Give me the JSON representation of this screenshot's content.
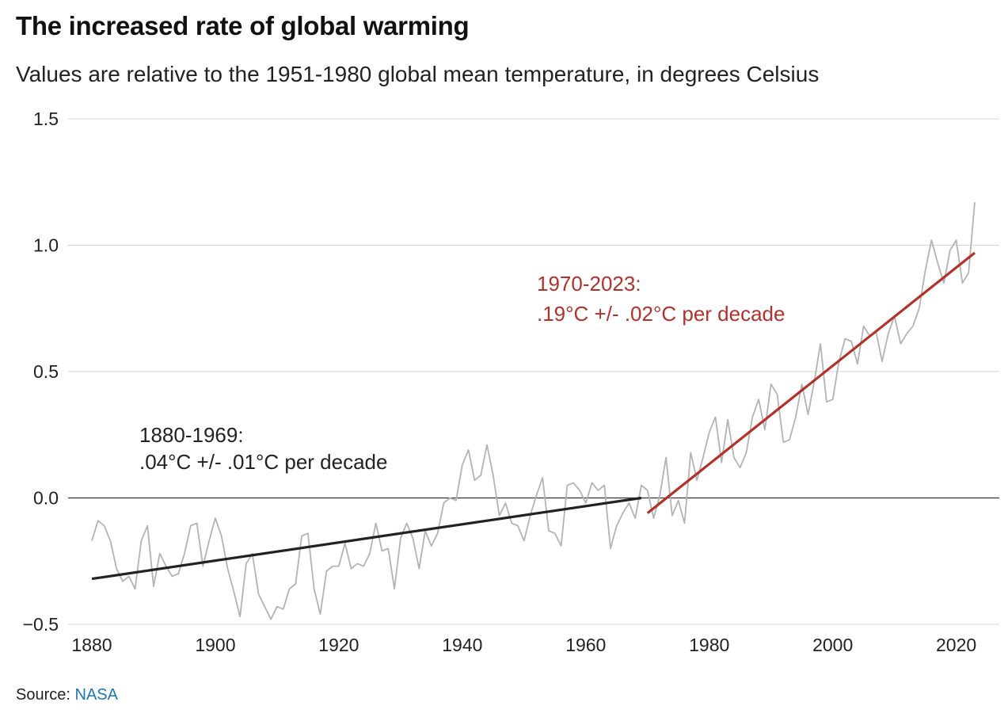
{
  "title": "The increased rate of global warming",
  "subtitle": "Values are relative to the 1951-1980 global mean temperature, in degrees Celsius",
  "source": {
    "label": "Source:",
    "link_text": "NASA"
  },
  "colors": {
    "series": "#b3b3b3",
    "trend_early": "#222222",
    "trend_late": "#b3312b",
    "grid": "#d4d4d4",
    "zero_line": "#333333",
    "link": "#1a78b4"
  },
  "chart_data": {
    "type": "line",
    "xlim": [
      1880,
      2023
    ],
    "ylim": [
      -0.5,
      1.5
    ],
    "x_ticks": [
      1880,
      1900,
      1920,
      1940,
      1960,
      1980,
      2000,
      2020
    ],
    "y_ticks": [
      {
        "value": 1.5,
        "label": "1.5"
      },
      {
        "value": 1.0,
        "label": "1.0"
      },
      {
        "value": 0.5,
        "label": "0.5"
      },
      {
        "value": 0.0,
        "label": "0.0"
      },
      {
        "value": -0.5,
        "label": "−0.5"
      }
    ],
    "grid": true,
    "series": [
      {
        "x_start": 1880,
        "values": [
          -0.17,
          -0.09,
          -0.11,
          -0.17,
          -0.28,
          -0.33,
          -0.31,
          -0.36,
          -0.17,
          -0.11,
          -0.35,
          -0.22,
          -0.27,
          -0.31,
          -0.3,
          -0.22,
          -0.11,
          -0.1,
          -0.27,
          -0.17,
          -0.08,
          -0.15,
          -0.28,
          -0.37,
          -0.47,
          -0.26,
          -0.22,
          -0.38,
          -0.43,
          -0.48,
          -0.43,
          -0.44,
          -0.36,
          -0.34,
          -0.15,
          -0.14,
          -0.36,
          -0.46,
          -0.29,
          -0.27,
          -0.27,
          -0.18,
          -0.28,
          -0.26,
          -0.27,
          -0.22,
          -0.1,
          -0.21,
          -0.2,
          -0.36,
          -0.16,
          -0.1,
          -0.16,
          -0.28,
          -0.13,
          -0.19,
          -0.14,
          -0.02,
          0.0,
          -0.01,
          0.13,
          0.19,
          0.07,
          0.09,
          0.21,
          0.09,
          -0.07,
          -0.02,
          -0.1,
          -0.11,
          -0.17,
          -0.07,
          0.01,
          0.08,
          -0.13,
          -0.14,
          -0.19,
          0.05,
          0.06,
          0.03,
          -0.02,
          0.06,
          0.03,
          0.05,
          -0.2,
          -0.11,
          -0.06,
          -0.02,
          -0.08,
          0.05,
          0.03,
          -0.08,
          0.01,
          0.16,
          -0.07,
          -0.01,
          -0.1,
          0.18,
          0.07,
          0.16,
          0.26,
          0.32,
          0.14,
          0.31,
          0.16,
          0.12,
          0.18,
          0.32,
          0.39,
          0.27,
          0.45,
          0.41,
          0.22,
          0.23,
          0.32,
          0.45,
          0.33,
          0.46,
          0.61,
          0.38,
          0.39,
          0.54,
          0.63,
          0.62,
          0.53,
          0.68,
          0.64,
          0.66,
          0.54,
          0.65,
          0.72,
          0.61,
          0.65,
          0.68,
          0.75,
          0.9,
          1.02,
          0.93,
          0.85,
          0.98,
          1.02,
          0.85,
          0.89,
          1.17
        ]
      }
    ],
    "trends": [
      {
        "label_line1": "1880-1969:",
        "label_line2": ".04°C +/- .01°C per decade",
        "start": [
          1880,
          -0.32
        ],
        "end": [
          1969,
          0.0
        ]
      },
      {
        "label_line1": "1970-2023:",
        "label_line2": ".19°C +/- .02°C per decade",
        "start": [
          1970,
          -0.06
        ],
        "end": [
          2023,
          0.97
        ]
      }
    ]
  }
}
